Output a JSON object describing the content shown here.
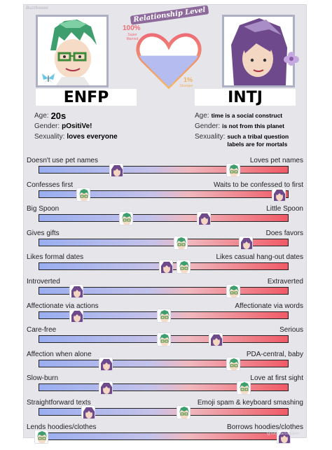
{
  "brand": "Buzzfeeeee",
  "header": {
    "title": "Relationship Level",
    "top_percent": "100%",
    "top_caption": "Super Married",
    "bottom_percent": "1%",
    "bottom_caption": "Stranger",
    "compatibility_fraction": 0.6
  },
  "left_person": {
    "type": "ENFP",
    "age_label": "Age:",
    "age": "20s",
    "gender_label": "Gender:",
    "gender": "pOsitiVe!",
    "sexuality_label": "Sexuality:",
    "sexuality": "loves everyone",
    "hair_color": "#3e9e6e",
    "icon": "butterfly-icon"
  },
  "right_person": {
    "type": "INTJ",
    "age_label": "Age:",
    "age": "time is a social construct",
    "gender_label": "Gender:",
    "gender": "is not from this planet",
    "sexuality_label": "Sexuality:",
    "sexuality": "such a tribal question labels are for mortals",
    "hair_color": "#6e4a8c",
    "icon": "flower-icon"
  },
  "traits": [
    {
      "left": "Doesn't use pet names",
      "right": "Loves pet names",
      "green": 0.78,
      "purple": 0.31
    },
    {
      "left": "Confesses first",
      "right": "Waits to be confessed to first",
      "green": 0.18,
      "purple": 0.96
    },
    {
      "left": "Big Spoon",
      "right": "Little Spoon",
      "green": 0.35,
      "purple": 0.66
    },
    {
      "left": "Gives gifts",
      "right": "Does favors",
      "green": 0.57,
      "purple": 0.83
    },
    {
      "left": "Likes formal dates",
      "right": "Likes casual hang-out dates",
      "green": 0.58,
      "purple": 0.51
    },
    {
      "left": "Introverted",
      "right": "Extraverted",
      "green": 0.78,
      "purple": 0.15
    },
    {
      "left": "Affectionate via actions",
      "right": "Affectionate via words",
      "green": 0.5,
      "purple": 0.15
    },
    {
      "left": "Care-free",
      "right": "Serious",
      "green": 0.5,
      "purple": 0.71
    },
    {
      "left": "Affection when alone",
      "right": "PDA-central, baby",
      "green": 0.78,
      "purple": 0.27
    },
    {
      "left": "Slow-burn",
      "right": "Love at first sight",
      "green": 0.82,
      "purple": 0.27
    },
    {
      "left": "Straightforward texts",
      "right": "Emoji spam & keyboard smashing",
      "green": 0.58,
      "purple": 0.2
    },
    {
      "left": "Lends hoodies/clothes",
      "right": "Borrows hoodies/clothes",
      "green": 0.01,
      "purple": 0.98
    }
  ],
  "watermark": "@reishiartsdraws"
}
